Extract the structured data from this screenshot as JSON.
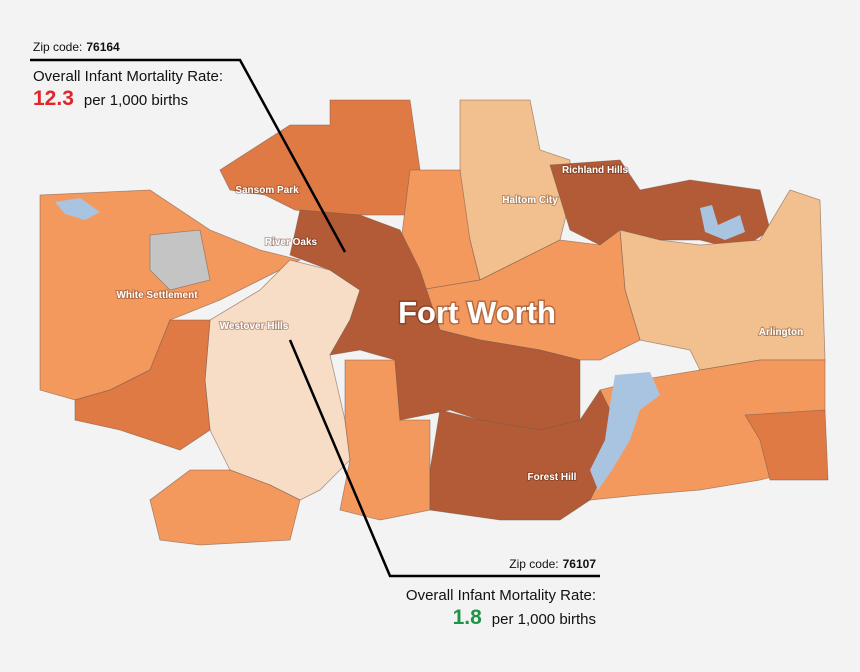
{
  "callouts": [
    {
      "zip_label": "Zip code:",
      "zip": "76164",
      "rate_label": "Overall Infant Mortality Rate:",
      "rate": 12.3,
      "unit": "per 1,000 births"
    },
    {
      "zip_label": "Zip code:",
      "zip": "76107",
      "rate_label": "Overall Infant Mortality Rate:",
      "rate": 1.8,
      "unit": "per 1,000 births"
    }
  ],
  "map": {
    "title": "Fort Worth",
    "places": [
      "Sansom Park",
      "River Oaks",
      "White Settlement",
      "Westover Hills",
      "Haltom City",
      "Richland Hills",
      "Arlington",
      "Forest Hill"
    ]
  }
}
